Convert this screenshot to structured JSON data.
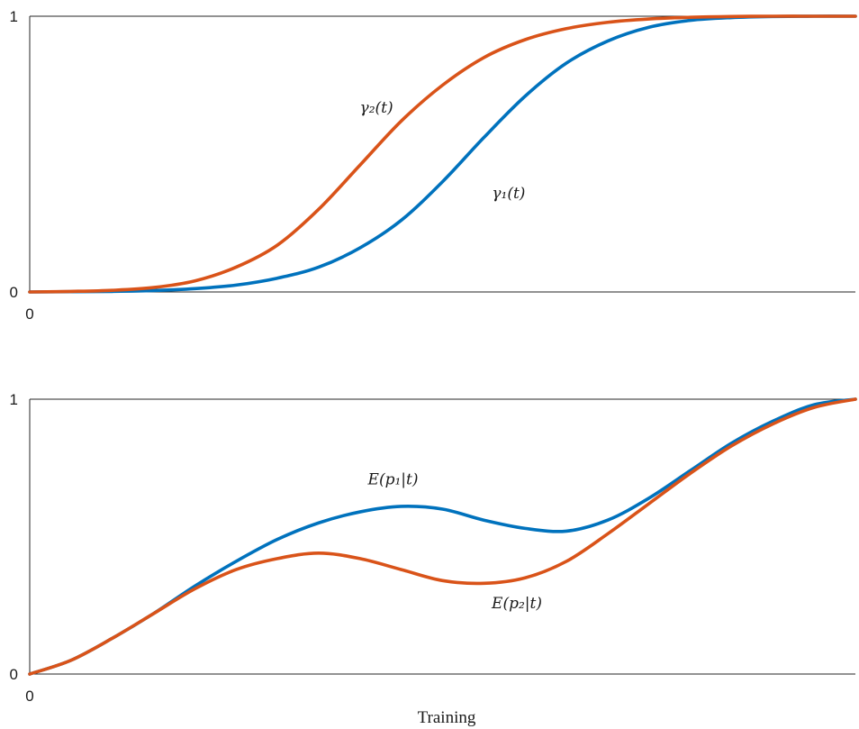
{
  "chart_data": [
    {
      "type": "line",
      "xlim": [
        0,
        1
      ],
      "ylim": [
        0,
        1
      ],
      "x_ticks": [
        "0"
      ],
      "y_ticks": [
        "0",
        "1"
      ],
      "grid": false,
      "colors": {
        "gamma1": "#0072BD",
        "gamma2": "#D95319"
      },
      "annotations": [
        {
          "text": "γ₂(t)",
          "x": 0.42,
          "y": 0.65
        },
        {
          "text": "γ₁(t)",
          "x": 0.58,
          "y": 0.34
        }
      ],
      "x": [
        0,
        0.05,
        0.1,
        0.15,
        0.2,
        0.25,
        0.3,
        0.35,
        0.4,
        0.45,
        0.5,
        0.55,
        0.6,
        0.65,
        0.7,
        0.75,
        0.8,
        0.85,
        0.9,
        0.95,
        1.0
      ],
      "series": [
        {
          "key": "gamma1",
          "values": [
            0,
            0.001,
            0.002,
            0.005,
            0.012,
            0.025,
            0.05,
            0.09,
            0.16,
            0.26,
            0.4,
            0.56,
            0.71,
            0.83,
            0.91,
            0.96,
            0.985,
            0.995,
            0.999,
            1.0,
            1.0
          ]
        },
        {
          "key": "gamma2",
          "values": [
            0,
            0.002,
            0.006,
            0.016,
            0.04,
            0.09,
            0.17,
            0.3,
            0.46,
            0.62,
            0.75,
            0.85,
            0.915,
            0.955,
            0.978,
            0.99,
            0.996,
            0.999,
            1.0,
            1.0,
            1.0
          ]
        }
      ]
    },
    {
      "type": "line",
      "xlim": [
        0,
        1
      ],
      "ylim": [
        0,
        1
      ],
      "x_ticks": [
        "0"
      ],
      "y_ticks": [
        "0",
        "1"
      ],
      "grid": false,
      "xlabel": "Training",
      "colors": {
        "p1": "#0072BD",
        "p2": "#D95319"
      },
      "annotations": [
        {
          "text": "E(p₁|t)",
          "x": 0.44,
          "y": 0.69
        },
        {
          "text": "E(p₂|t)",
          "x": 0.59,
          "y": 0.24
        }
      ],
      "x": [
        0,
        0.05,
        0.1,
        0.15,
        0.2,
        0.25,
        0.3,
        0.35,
        0.4,
        0.45,
        0.5,
        0.55,
        0.6,
        0.65,
        0.7,
        0.75,
        0.8,
        0.85,
        0.9,
        0.95,
        1.0
      ],
      "series": [
        {
          "key": "p1",
          "values": [
            0,
            0.05,
            0.13,
            0.22,
            0.32,
            0.41,
            0.49,
            0.55,
            0.59,
            0.61,
            0.6,
            0.56,
            0.53,
            0.52,
            0.56,
            0.64,
            0.74,
            0.84,
            0.92,
            0.98,
            1.0
          ]
        },
        {
          "key": "p2",
          "values": [
            0,
            0.05,
            0.13,
            0.22,
            0.31,
            0.38,
            0.42,
            0.44,
            0.42,
            0.38,
            0.34,
            0.33,
            0.35,
            0.41,
            0.51,
            0.62,
            0.73,
            0.83,
            0.91,
            0.97,
            1.0
          ]
        }
      ]
    }
  ]
}
